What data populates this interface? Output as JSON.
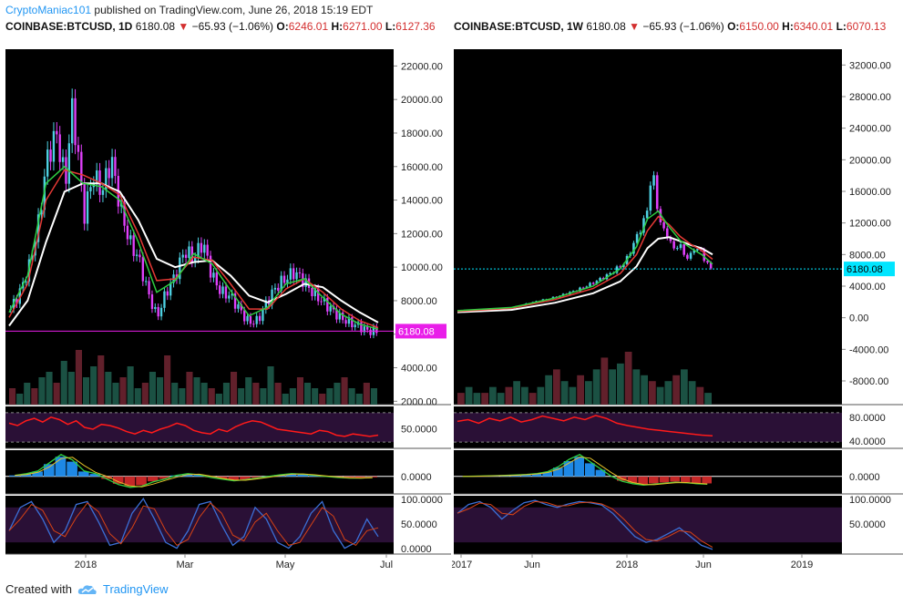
{
  "header": {
    "user": "CryptoManiac101",
    "published_text": "published on TradingView.com, June 26, 2018 15:19 EDT"
  },
  "footer": {
    "created_with": "Created with",
    "brand": "TradingView"
  },
  "colors": {
    "background": "#000000",
    "candle_up": "#4dd0e1",
    "candle_down": "#e040fb",
    "ema_fast": "#2ecc40",
    "ema_mid": "#e53935",
    "ema_slow": "#ffffff",
    "rsi": "#ff1a1a",
    "price_tag": "#e91ee9",
    "price_tag_weekly": "#00e5ff"
  },
  "chart_data": [
    {
      "type": "candlestick",
      "title": "COINBASE:BTCUSD, 1D",
      "symbol_label": "COINBASE:BTCUSD, 1D",
      "last": "6180.08",
      "change": "−65.93 (−1.06%)",
      "open_label": "O:",
      "open": "6246.01",
      "high_label": "H:",
      "high": "6271.00",
      "low_label": "L:",
      "low": "6127.36",
      "price_tag": "6180.08",
      "ylim": [
        1800,
        23000
      ],
      "y_ticks": [
        "22000.00",
        "20000.00",
        "18000.00",
        "16000.00",
        "14000.00",
        "12000.00",
        "10000.00",
        "8000.00",
        "6000.00",
        "4000.00",
        "2000.00"
      ],
      "x_labels": [
        "2018",
        "Mar",
        "May",
        "Jul"
      ],
      "price_path": [
        [
          0,
          7500
        ],
        [
          3,
          8500
        ],
        [
          6,
          10000
        ],
        [
          9,
          12500
        ],
        [
          12,
          16500
        ],
        [
          15,
          18000
        ],
        [
          18,
          15000
        ],
        [
          20,
          19500
        ],
        [
          22,
          17000
        ],
        [
          24,
          13000
        ],
        [
          27,
          15500
        ],
        [
          30,
          14500
        ],
        [
          33,
          16500
        ],
        [
          36,
          13500
        ],
        [
          39,
          11500
        ],
        [
          42,
          10500
        ],
        [
          45,
          8500
        ],
        [
          48,
          7000
        ],
        [
          51,
          8500
        ],
        [
          54,
          9500
        ],
        [
          57,
          11000
        ],
        [
          60,
          10500
        ],
        [
          63,
          11500
        ],
        [
          66,
          9500
        ],
        [
          69,
          8500
        ],
        [
          72,
          8300
        ],
        [
          75,
          7500
        ],
        [
          78,
          6700
        ],
        [
          81,
          6800
        ],
        [
          84,
          7900
        ],
        [
          87,
          8800
        ],
        [
          90,
          9300
        ],
        [
          93,
          9700
        ],
        [
          96,
          9200
        ],
        [
          99,
          8500
        ],
        [
          102,
          8000
        ],
        [
          105,
          7500
        ],
        [
          108,
          7000
        ],
        [
          111,
          6700
        ],
        [
          114,
          6500
        ],
        [
          117,
          6200
        ],
        [
          120,
          6180
        ]
      ],
      "ema_fast": [
        [
          0,
          7300
        ],
        [
          6,
          9500
        ],
        [
          12,
          15000
        ],
        [
          18,
          16000
        ],
        [
          24,
          15000
        ],
        [
          30,
          14800
        ],
        [
          36,
          14000
        ],
        [
          42,
          11500
        ],
        [
          48,
          8500
        ],
        [
          54,
          9200
        ],
        [
          60,
          10800
        ],
        [
          66,
          10200
        ],
        [
          72,
          8600
        ],
        [
          78,
          7100
        ],
        [
          84,
          7600
        ],
        [
          90,
          9000
        ],
        [
          96,
          9300
        ],
        [
          102,
          8200
        ],
        [
          108,
          7200
        ],
        [
          114,
          6600
        ],
        [
          120,
          6300
        ]
      ],
      "ema_mid": [
        [
          0,
          7000
        ],
        [
          6,
          9000
        ],
        [
          12,
          14000
        ],
        [
          18,
          15800
        ],
        [
          24,
          15500
        ],
        [
          30,
          15000
        ],
        [
          36,
          14300
        ],
        [
          42,
          12000
        ],
        [
          48,
          9200
        ],
        [
          54,
          9300
        ],
        [
          60,
          10600
        ],
        [
          66,
          10400
        ],
        [
          72,
          9000
        ],
        [
          78,
          7500
        ],
        [
          84,
          7500
        ],
        [
          90,
          8700
        ],
        [
          96,
          9300
        ],
        [
          102,
          8500
        ],
        [
          108,
          7500
        ],
        [
          114,
          6800
        ],
        [
          120,
          6400
        ]
      ],
      "ema_slow": [
        [
          0,
          6500
        ],
        [
          6,
          8000
        ],
        [
          12,
          11500
        ],
        [
          18,
          14500
        ],
        [
          24,
          15000
        ],
        [
          30,
          15000
        ],
        [
          36,
          14500
        ],
        [
          42,
          12800
        ],
        [
          48,
          10500
        ],
        [
          54,
          10000
        ],
        [
          60,
          10300
        ],
        [
          66,
          10400
        ],
        [
          72,
          9500
        ],
        [
          78,
          8300
        ],
        [
          84,
          7900
        ],
        [
          90,
          8400
        ],
        [
          96,
          9000
        ],
        [
          102,
          8800
        ],
        [
          108,
          8000
        ],
        [
          114,
          7300
        ],
        [
          120,
          6700
        ]
      ],
      "volume": [
        3,
        2,
        4,
        3,
        5,
        6,
        4,
        8,
        6,
        10,
        5,
        7,
        9,
        6,
        4,
        5,
        7,
        3,
        4,
        6,
        5,
        9,
        4,
        3,
        6,
        5,
        4,
        3,
        2,
        4,
        6,
        3,
        5,
        4,
        3,
        7,
        4,
        2,
        3,
        5,
        4,
        3,
        2,
        3,
        4,
        5,
        3,
        2,
        4,
        3
      ],
      "rsi": {
        "label": "50.0000",
        "values": [
          62,
          58,
          66,
          70,
          64,
          72,
          68,
          60,
          66,
          55,
          52,
          60,
          58,
          54,
          48,
          44,
          50,
          46,
          52,
          56,
          62,
          58,
          50,
          46,
          44,
          52,
          48,
          56,
          62,
          66,
          64,
          58,
          52,
          50,
          48,
          46,
          44,
          50,
          48,
          42,
          40,
          44,
          42,
          40,
          42
        ]
      },
      "macd": {
        "label": "0.0000",
        "values": [
          0.2,
          0.5,
          1,
          2.5,
          4,
          3,
          1,
          0.5,
          -0.5,
          -1.5,
          -2,
          -1.8,
          -1,
          -0.5,
          0.2,
          0.5,
          0.3,
          -0.2,
          -0.5,
          -0.8,
          -0.6,
          -0.3,
          0,
          0.3,
          0.5,
          0.4,
          0.2,
          0,
          -0.2,
          -0.3,
          -0.3,
          -0.2
        ]
      },
      "stoch": {
        "labels": [
          "100.0000",
          "50.0000",
          "0.0000"
        ],
        "values": [
          40,
          80,
          90,
          60,
          20,
          40,
          85,
          90,
          55,
          15,
          20,
          70,
          95,
          60,
          20,
          10,
          40,
          85,
          90,
          50,
          15,
          30,
          80,
          60,
          20,
          10,
          30,
          70,
          90,
          40,
          10,
          20,
          60,
          30
        ]
      }
    },
    {
      "type": "candlestick",
      "title": "COINBASE:BTCUSD, 1W",
      "symbol_label": "COINBASE:BTCUSD, 1W",
      "last": "6180.08",
      "change": "−65.93 (−1.06%)",
      "open_label": "O:",
      "open": "6150.00",
      "high_label": "H:",
      "high": "6340.01",
      "low_label": "L:",
      "low": "6070.13",
      "price_tag": "6180.08",
      "ylim": [
        -11000,
        34000
      ],
      "y_ticks": [
        "32000.00",
        "28000.00",
        "24000.00",
        "20000.00",
        "16000.00",
        "12000.00",
        "8000.00",
        "4000.00",
        "0.00",
        "-4000.00",
        "-8000.00"
      ],
      "x_labels": [
        "2017",
        "Jun",
        "2018",
        "Jun",
        "2019"
      ],
      "price_path": [
        [
          0,
          900
        ],
        [
          10,
          1100
        ],
        [
          20,
          1300
        ],
        [
          28,
          2000
        ],
        [
          36,
          2600
        ],
        [
          44,
          3500
        ],
        [
          50,
          4400
        ],
        [
          56,
          5500
        ],
        [
          62,
          7000
        ],
        [
          66,
          10000
        ],
        [
          70,
          13000
        ],
        [
          72,
          19000
        ],
        [
          74,
          14000
        ],
        [
          76,
          11000
        ],
        [
          78,
          10500
        ],
        [
          80,
          8500
        ],
        [
          82,
          9500
        ],
        [
          84,
          8000
        ],
        [
          86,
          7500
        ],
        [
          88,
          9000
        ],
        [
          90,
          8500
        ],
        [
          92,
          7200
        ],
        [
          94,
          6180
        ]
      ],
      "ema_fast": [
        [
          0,
          900
        ],
        [
          20,
          1300
        ],
        [
          36,
          2500
        ],
        [
          50,
          4000
        ],
        [
          60,
          6200
        ],
        [
          66,
          9000
        ],
        [
          70,
          12500
        ],
        [
          74,
          13500
        ],
        [
          78,
          11500
        ],
        [
          82,
          9800
        ],
        [
          86,
          8800
        ],
        [
          90,
          8000
        ],
        [
          94,
          6800
        ]
      ],
      "ema_mid": [
        [
          0,
          800
        ],
        [
          20,
          1200
        ],
        [
          36,
          2300
        ],
        [
          50,
          3700
        ],
        [
          60,
          5600
        ],
        [
          66,
          8000
        ],
        [
          70,
          11000
        ],
        [
          74,
          12800
        ],
        [
          78,
          11800
        ],
        [
          82,
          10300
        ],
        [
          86,
          9300
        ],
        [
          90,
          8500
        ],
        [
          94,
          7400
        ]
      ],
      "ema_slow": [
        [
          0,
          700
        ],
        [
          20,
          1000
        ],
        [
          36,
          1900
        ],
        [
          50,
          3100
        ],
        [
          60,
          4600
        ],
        [
          66,
          6500
        ],
        [
          70,
          8800
        ],
        [
          74,
          10000
        ],
        [
          78,
          10200
        ],
        [
          82,
          9700
        ],
        [
          86,
          9200
        ],
        [
          90,
          8800
        ],
        [
          94,
          8000
        ]
      ],
      "volume": [
        2,
        3,
        2,
        2,
        3,
        2,
        3,
        4,
        3,
        2,
        3,
        5,
        6,
        4,
        3,
        5,
        4,
        6,
        8,
        6,
        7,
        9,
        6,
        5,
        4,
        3,
        4,
        5,
        6,
        4,
        3,
        2
      ],
      "rsi": {
        "labels": [
          "80.0000",
          "40.0000"
        ],
        "values": [
          65,
          68,
          62,
          70,
          66,
          72,
          64,
          68,
          74,
          70,
          66,
          72,
          68,
          75,
          70,
          62,
          58,
          55,
          52,
          50,
          48,
          46,
          44,
          42,
          41
        ]
      },
      "macd": {
        "label": "0.0000",
        "values": [
          0,
          0.05,
          0.1,
          0.15,
          0.2,
          0.3,
          0.4,
          0.6,
          1,
          2,
          3.5,
          4.5,
          3,
          1.5,
          0,
          -1,
          -1.5,
          -1.8,
          -1.6,
          -1.4,
          -1.2,
          -1.3,
          -1.5,
          -1.6
        ]
      },
      "stoch": {
        "labels": [
          "100.0000",
          "50.0000"
        ],
        "values": [
          70,
          85,
          90,
          80,
          60,
          75,
          88,
          92,
          85,
          80,
          86,
          90,
          88,
          84,
          70,
          50,
          30,
          20,
          25,
          35,
          45,
          30,
          15,
          8
        ]
      }
    }
  ]
}
